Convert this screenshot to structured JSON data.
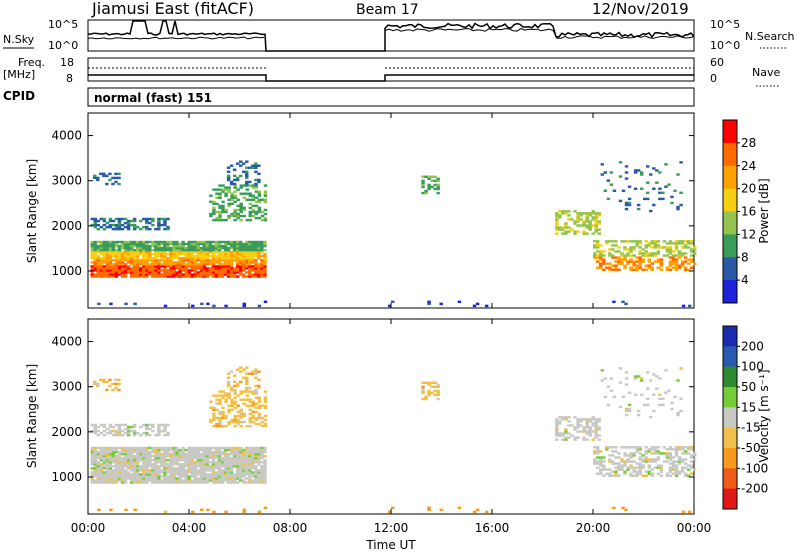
{
  "header": {
    "station": "Jiamusi East (fitACF)",
    "beam": "Beam 17",
    "date": "12/Nov/2019"
  },
  "strip_labels": {
    "nsky": "N.Sky",
    "nsearch": "N.Search",
    "freq": "Freq.",
    "freq_unit": "[MHz]",
    "nave": "Nave",
    "cpid": "CPID",
    "cpid_value": "normal (fast) 151",
    "left_ticks_top": [
      "10^5",
      "10^0"
    ],
    "right_ticks_top": [
      "10^5",
      "10^0"
    ],
    "left_ticks_freq": [
      "18",
      "8"
    ],
    "right_ticks_nave": [
      "60",
      "0"
    ]
  },
  "chart_data": [
    {
      "type": "heatmap",
      "title": "",
      "ylabel": "Slant Range [km]",
      "yticks": [
        1000,
        2000,
        3000,
        4000
      ],
      "ylim": [
        180,
        4500
      ],
      "colorbar": {
        "label": "Power [dB]",
        "ticks": [
          "28",
          "24",
          "20",
          "16",
          "12",
          "8",
          "4"
        ],
        "colors": [
          "#ff0000",
          "#ff6a00",
          "#ff9f00",
          "#f6cf12",
          "#93c44d",
          "#3a9c5c",
          "#2a5aa5",
          "#1e22d8"
        ]
      }
    },
    {
      "type": "heatmap",
      "title": "",
      "ylabel": "Slant Range [km]",
      "yticks": [
        1000,
        2000,
        3000,
        4000
      ],
      "ylim": [
        180,
        4500
      ],
      "colorbar": {
        "label": "Velocity [m s⁻¹]",
        "ticks": [
          "200",
          "100",
          "50",
          "15",
          "-15",
          "-50",
          "-100",
          "-200"
        ],
        "colors": [
          "#1a2bb0",
          "#2a5ab0",
          "#2d8a2d",
          "#76cc38",
          "#c9c9c4",
          "#f1c04a",
          "#f59a1c",
          "#ef5a16",
          "#e01818"
        ]
      }
    }
  ],
  "time_axis": {
    "label": "Time UT",
    "ticks": [
      "00:00",
      "04:00",
      "08:00",
      "12:00",
      "16:00",
      "20:00",
      "00:00"
    ]
  }
}
